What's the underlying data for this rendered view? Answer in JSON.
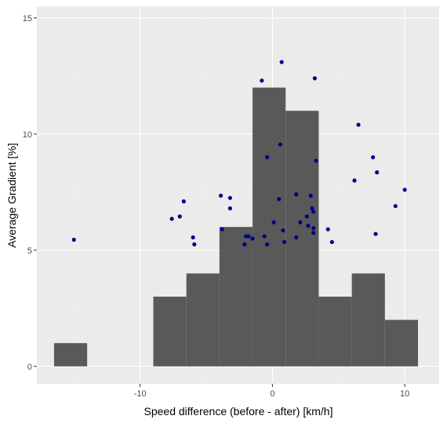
{
  "chart_data": {
    "type": "bar",
    "subtype": "histogram-with-scatter-overlay",
    "xlabel": "Speed difference (before - after) [km/h]",
    "ylabel": "Average Gradient [%]",
    "xlim": [
      -17.8,
      12.6
    ],
    "ylim": [
      -0.75,
      15.5
    ],
    "x_ticks": [
      -10,
      0,
      10
    ],
    "y_ticks": [
      0,
      5,
      10,
      15
    ],
    "grid": true,
    "background": "#ebebeb",
    "grid_major_color": "#ffffff",
    "bar_color": "#595959",
    "point_color": "#00008b",
    "histogram_bins": [
      {
        "x0": -16.5,
        "x1": -14.0,
        "count": 1
      },
      {
        "x0": -14.0,
        "x1": -11.5,
        "count": 0
      },
      {
        "x0": -11.5,
        "x1": -9.0,
        "count": 0
      },
      {
        "x0": -9.0,
        "x1": -6.5,
        "count": 3
      },
      {
        "x0": -6.5,
        "x1": -4.0,
        "count": 4
      },
      {
        "x0": -4.0,
        "x1": -1.5,
        "count": 6
      },
      {
        "x0": -1.5,
        "x1": 1.0,
        "count": 12
      },
      {
        "x0": 1.0,
        "x1": 3.5,
        "count": 11
      },
      {
        "x0": 3.5,
        "x1": 6.0,
        "count": 3
      },
      {
        "x0": 6.0,
        "x1": 8.5,
        "count": 4
      },
      {
        "x0": 8.5,
        "x1": 11.0,
        "count": 2
      }
    ],
    "points": [
      {
        "x": -15.0,
        "y": 5.45
      },
      {
        "x": -7.6,
        "y": 6.35
      },
      {
        "x": -7.0,
        "y": 6.45
      },
      {
        "x": -6.7,
        "y": 7.1
      },
      {
        "x": -6.0,
        "y": 5.55
      },
      {
        "x": -5.9,
        "y": 5.25
      },
      {
        "x": -3.9,
        "y": 7.35
      },
      {
        "x": -3.8,
        "y": 5.9
      },
      {
        "x": -3.2,
        "y": 7.25
      },
      {
        "x": -3.2,
        "y": 6.8
      },
      {
        "x": -2.1,
        "y": 5.25
      },
      {
        "x": -2.0,
        "y": 5.6
      },
      {
        "x": -1.8,
        "y": 5.6
      },
      {
        "x": -1.5,
        "y": 5.5
      },
      {
        "x": -0.8,
        "y": 12.3
      },
      {
        "x": -0.6,
        "y": 5.6
      },
      {
        "x": -0.4,
        "y": 9.0
      },
      {
        "x": -0.4,
        "y": 5.25
      },
      {
        "x": 0.1,
        "y": 6.2
      },
      {
        "x": 0.5,
        "y": 7.2
      },
      {
        "x": 0.6,
        "y": 9.55
      },
      {
        "x": 0.7,
        "y": 13.1
      },
      {
        "x": 0.8,
        "y": 5.85
      },
      {
        "x": 0.9,
        "y": 5.35
      },
      {
        "x": 1.8,
        "y": 7.4
      },
      {
        "x": 1.8,
        "y": 5.55
      },
      {
        "x": 2.1,
        "y": 6.2
      },
      {
        "x": 2.6,
        "y": 6.45
      },
      {
        "x": 2.7,
        "y": 6.05
      },
      {
        "x": 2.9,
        "y": 7.35
      },
      {
        "x": 3.0,
        "y": 6.8
      },
      {
        "x": 3.1,
        "y": 6.65
      },
      {
        "x": 3.1,
        "y": 5.95
      },
      {
        "x": 3.1,
        "y": 5.75
      },
      {
        "x": 3.2,
        "y": 12.4
      },
      {
        "x": 3.3,
        "y": 8.85
      },
      {
        "x": 4.2,
        "y": 5.9
      },
      {
        "x": 4.5,
        "y": 5.35
      },
      {
        "x": 6.2,
        "y": 8.0
      },
      {
        "x": 6.5,
        "y": 10.4
      },
      {
        "x": 7.6,
        "y": 9.0
      },
      {
        "x": 7.8,
        "y": 5.7
      },
      {
        "x": 7.9,
        "y": 8.35
      },
      {
        "x": 9.3,
        "y": 6.9
      },
      {
        "x": 10.0,
        "y": 7.6
      }
    ]
  }
}
